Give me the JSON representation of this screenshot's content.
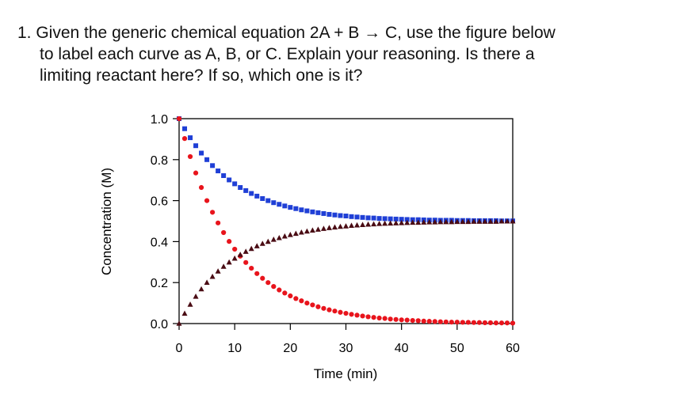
{
  "question": {
    "line1": "1. Given the generic chemical equation 2A + B → C,  use the figure below",
    "line2": "to label each curve as A, B, or C. Explain your reasoning. Is there a",
    "line3": "limiting reactant here? If so, which one is it?"
  },
  "chart_data": {
    "type": "scatter",
    "title": "",
    "xlabel": "Time (min)",
    "ylabel": "Concentration (M)",
    "xlim": [
      0,
      60
    ],
    "ylim": [
      0,
      1.0
    ],
    "xticks": [
      "0",
      "10",
      "20",
      "30",
      "40",
      "50",
      "60"
    ],
    "yticks": [
      "0.0",
      "0.2",
      "0.4",
      "0.6",
      "0.8",
      "1.0"
    ],
    "grid": false,
    "legend": "none",
    "x": [
      0,
      1,
      2,
      3,
      4,
      5,
      6,
      7,
      8,
      9,
      10,
      11,
      12,
      13,
      14,
      15,
      16,
      17,
      18,
      19,
      20,
      21,
      22,
      23,
      24,
      25,
      26,
      27,
      28,
      29,
      30,
      31,
      32,
      33,
      34,
      35,
      36,
      37,
      38,
      39,
      40,
      41,
      42,
      43,
      44,
      45,
      46,
      47,
      48,
      49,
      50,
      51,
      52,
      53,
      54,
      55,
      56,
      57,
      58,
      59,
      60
    ],
    "series": [
      {
        "marker": "square",
        "color": "#1f3fd6",
        "values": [
          1.0,
          0.951,
          0.907,
          0.868,
          0.832,
          0.8,
          0.771,
          0.745,
          0.722,
          0.701,
          0.682,
          0.664,
          0.649,
          0.635,
          0.622,
          0.61,
          0.6,
          0.59,
          0.582,
          0.574,
          0.567,
          0.561,
          0.555,
          0.55,
          0.545,
          0.541,
          0.537,
          0.533,
          0.53,
          0.527,
          0.525,
          0.522,
          0.52,
          0.518,
          0.516,
          0.515,
          0.513,
          0.512,
          0.511,
          0.51,
          0.509,
          0.508,
          0.507,
          0.507,
          0.506,
          0.505,
          0.505,
          0.504,
          0.504,
          0.504,
          0.503,
          0.503,
          0.503,
          0.502,
          0.502,
          0.502,
          0.502,
          0.502,
          0.501,
          0.501,
          0.501
        ]
      },
      {
        "marker": "circle",
        "color": "#e8141c",
        "values": [
          1.0,
          0.903,
          0.815,
          0.735,
          0.664,
          0.6,
          0.543,
          0.491,
          0.444,
          0.401,
          0.363,
          0.329,
          0.298,
          0.27,
          0.244,
          0.221,
          0.2,
          0.181,
          0.164,
          0.149,
          0.135,
          0.122,
          0.111,
          0.1,
          0.091,
          0.082,
          0.074,
          0.067,
          0.061,
          0.055,
          0.05,
          0.045,
          0.041,
          0.037,
          0.033,
          0.03,
          0.027,
          0.025,
          0.022,
          0.02,
          0.018,
          0.017,
          0.015,
          0.014,
          0.012,
          0.011,
          0.01,
          0.009,
          0.008,
          0.007,
          0.007,
          0.006,
          0.006,
          0.005,
          0.005,
          0.004,
          0.004,
          0.003,
          0.003,
          0.003,
          0.002
        ]
      },
      {
        "marker": "triangle",
        "color": "#4a0c14",
        "values": [
          0.0,
          0.049,
          0.093,
          0.132,
          0.168,
          0.2,
          0.229,
          0.255,
          0.278,
          0.299,
          0.318,
          0.336,
          0.351,
          0.365,
          0.378,
          0.39,
          0.4,
          0.41,
          0.418,
          0.426,
          0.433,
          0.439,
          0.445,
          0.45,
          0.455,
          0.459,
          0.463,
          0.467,
          0.47,
          0.473,
          0.475,
          0.478,
          0.48,
          0.482,
          0.484,
          0.485,
          0.487,
          0.488,
          0.489,
          0.49,
          0.491,
          0.492,
          0.493,
          0.493,
          0.494,
          0.495,
          0.495,
          0.496,
          0.496,
          0.496,
          0.497,
          0.497,
          0.497,
          0.498,
          0.498,
          0.498,
          0.498,
          0.498,
          0.499,
          0.499,
          0.499
        ]
      }
    ]
  }
}
